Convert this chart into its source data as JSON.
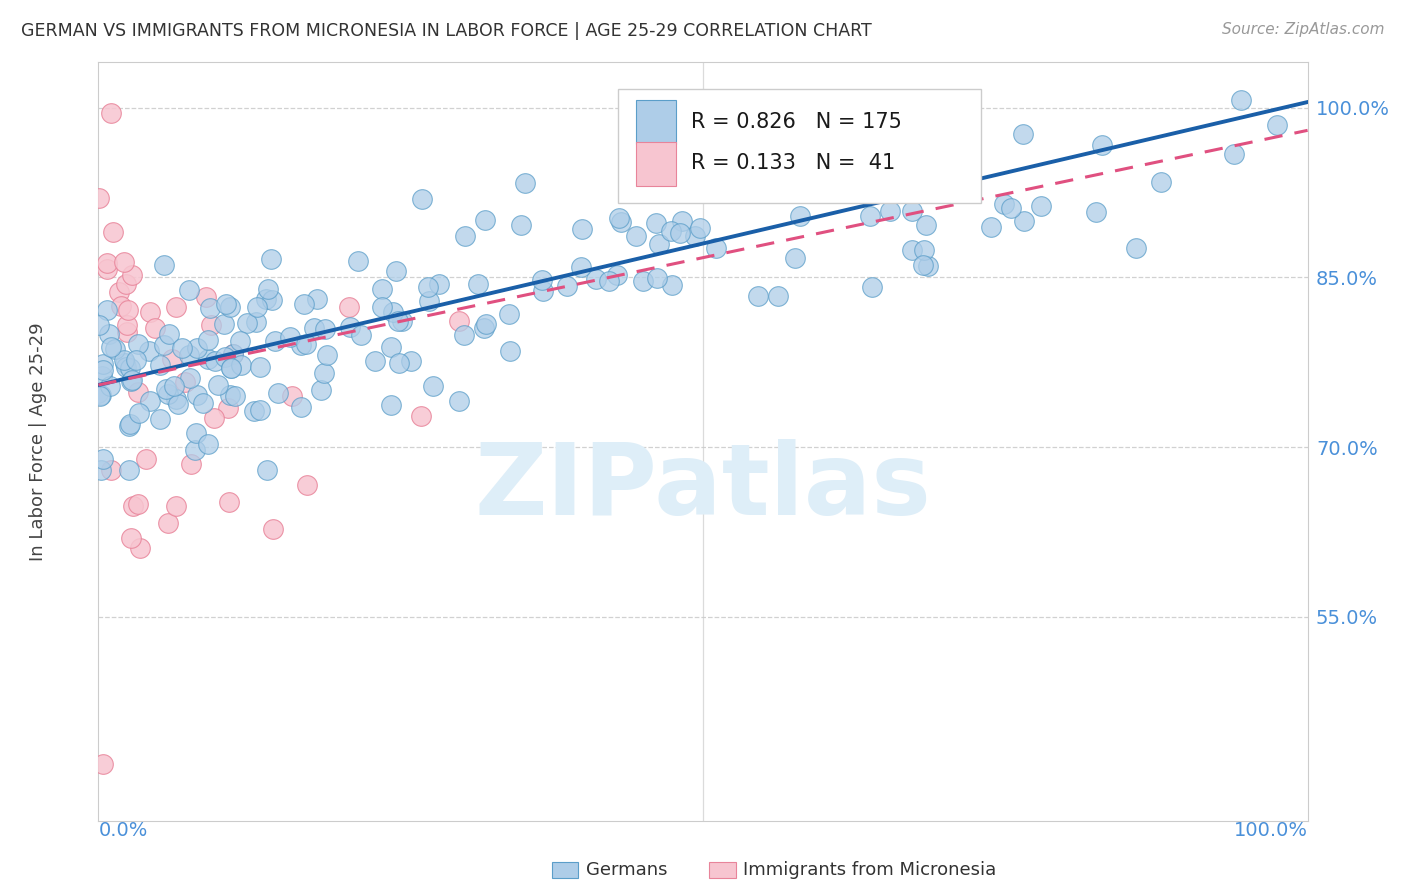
{
  "title": "GERMAN VS IMMIGRANTS FROM MICRONESIA IN LABOR FORCE | AGE 25-29 CORRELATION CHART",
  "source": "Source: ZipAtlas.com",
  "ylabel": "In Labor Force | Age 25-29",
  "ytick_labels": [
    "100.0%",
    "85.0%",
    "70.0%",
    "55.0%"
  ],
  "ytick_values": [
    1.0,
    0.85,
    0.7,
    0.55
  ],
  "xlim": [
    0.0,
    1.0
  ],
  "ylim": [
    0.37,
    1.04
  ],
  "blue_fill": "#aecde8",
  "blue_edge": "#5b9ec9",
  "pink_fill": "#f7c5d0",
  "pink_edge": "#e8849a",
  "blue_line_color": "#1a5fa8",
  "pink_line_color": "#e05080",
  "watermark_color": "#deeef8",
  "axis_label_color": "#4a90d9",
  "grid_color": "#cccccc",
  "title_color": "#333333",
  "bg_color": "#ffffff",
  "legend_R_blue": "0.826",
  "legend_N_blue": "175",
  "legend_R_pink": "0.133",
  "legend_N_pink": " 41",
  "blue_line_start_y": 0.755,
  "blue_line_end_y": 1.005,
  "pink_line_start_y": 0.755,
  "pink_line_end_y": 0.98
}
